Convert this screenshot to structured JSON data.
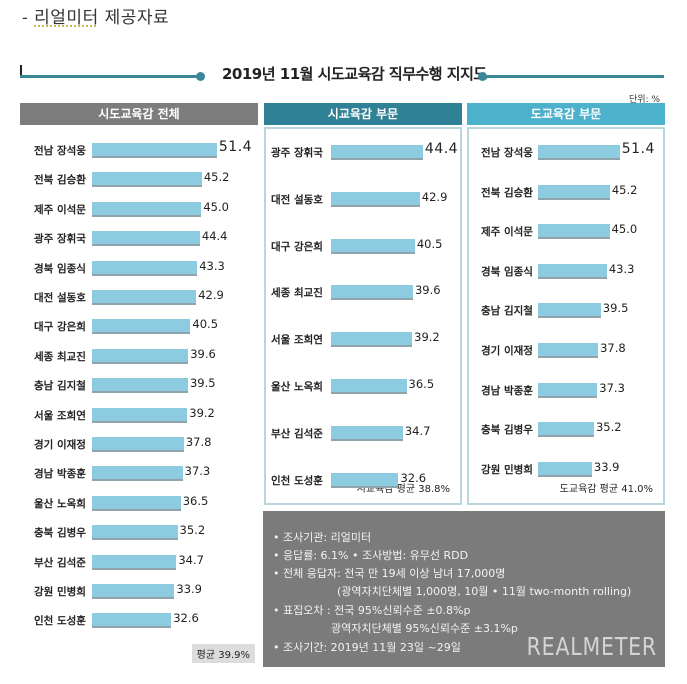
{
  "caption": {
    "prefix": "- ",
    "source": "리얼미터",
    "suffix": " 제공자료"
  },
  "title": "2019년 11월 시도교육감 직무수행 지지도",
  "unit": "단위: %",
  "colors": {
    "all_header": "#7d7d7d",
    "si_header": "#2f8296",
    "do_header": "#4cb2cc",
    "bar": "#8ccbe0",
    "accent": "#3a8799",
    "info_bg": "#7b7b7b"
  },
  "chart_data": [
    {
      "type": "bar",
      "orientation": "horizontal",
      "title": "시도교육감 전체",
      "categories": [
        "전남 장석웅",
        "전북 김승환",
        "제주 이석문",
        "광주 장휘국",
        "경북 임종식",
        "대전 설동호",
        "대구 강은희",
        "세종 최교진",
        "충남 김지철",
        "서울 조희연",
        "경기 이재정",
        "경남 박종훈",
        "울산 노옥희",
        "충북 김병우",
        "부산 김석준",
        "강원 민병희",
        "인천 도성훈"
      ],
      "values": [
        51.4,
        45.2,
        45.0,
        44.4,
        43.3,
        42.9,
        40.5,
        39.6,
        39.5,
        39.2,
        37.8,
        37.3,
        36.5,
        35.2,
        34.7,
        33.9,
        32.6
      ],
      "labels": [
        "51.4",
        "45.2",
        "45.0",
        "44.4",
        "43.3",
        "42.9",
        "40.5",
        "39.6",
        "39.5",
        "39.2",
        "37.8",
        "37.3",
        "36.5",
        "35.2",
        "34.7",
        "33.9",
        "32.6"
      ],
      "average_label": "평균 39.9%",
      "unit": "%"
    },
    {
      "type": "bar",
      "orientation": "horizontal",
      "title": "시교육감 부문",
      "categories": [
        "광주 장휘국",
        "대전 설동호",
        "대구 강은희",
        "세종 최교진",
        "서울 조희연",
        "울산 노옥희",
        "부산 김석준",
        "인천 도성훈"
      ],
      "values": [
        44.4,
        42.9,
        40.5,
        39.6,
        39.2,
        36.5,
        34.7,
        32.6
      ],
      "labels": [
        "44.4",
        "42.9",
        "40.5",
        "39.6",
        "39.2",
        "36.5",
        "34.7",
        "32.6"
      ],
      "average_label": "시교육감 평균 38.8%",
      "unit": "%"
    },
    {
      "type": "bar",
      "orientation": "horizontal",
      "title": "도교육감 부문",
      "categories": [
        "전남 장석웅",
        "전북 김승환",
        "제주 이석문",
        "경북 임종식",
        "충남 김지철",
        "경기 이재정",
        "경남 박종훈",
        "충북 김병우",
        "강원 민병희"
      ],
      "values": [
        51.4,
        45.2,
        45.0,
        43.3,
        39.5,
        37.8,
        37.3,
        35.2,
        33.9
      ],
      "labels": [
        "51.4",
        "45.2",
        "45.0",
        "43.3",
        "39.5",
        "37.8",
        "37.3",
        "35.2",
        "33.9"
      ],
      "average_label": "도교육감 평균 41.0%",
      "unit": "%"
    }
  ],
  "info": {
    "lines": [
      "• 조사기관: 리얼미터",
      "• 응답률: 6.1% • 조사방법: 유무선 RDD",
      "• 전체 응답자: 전국 만 19세 이상 남녀 17,000명",
      "(광역자치단체별 1,000명, 10월 • 11월 two-month rolling)",
      "• 표집오차 : 전국 95%신뢰수준 ±0.8%p",
      "광역자치단체별 95%신뢰수준 ±3.1%p",
      "• 조사기간: 2019년 11월 23일 ~29일"
    ],
    "logo": "REALMETER"
  }
}
